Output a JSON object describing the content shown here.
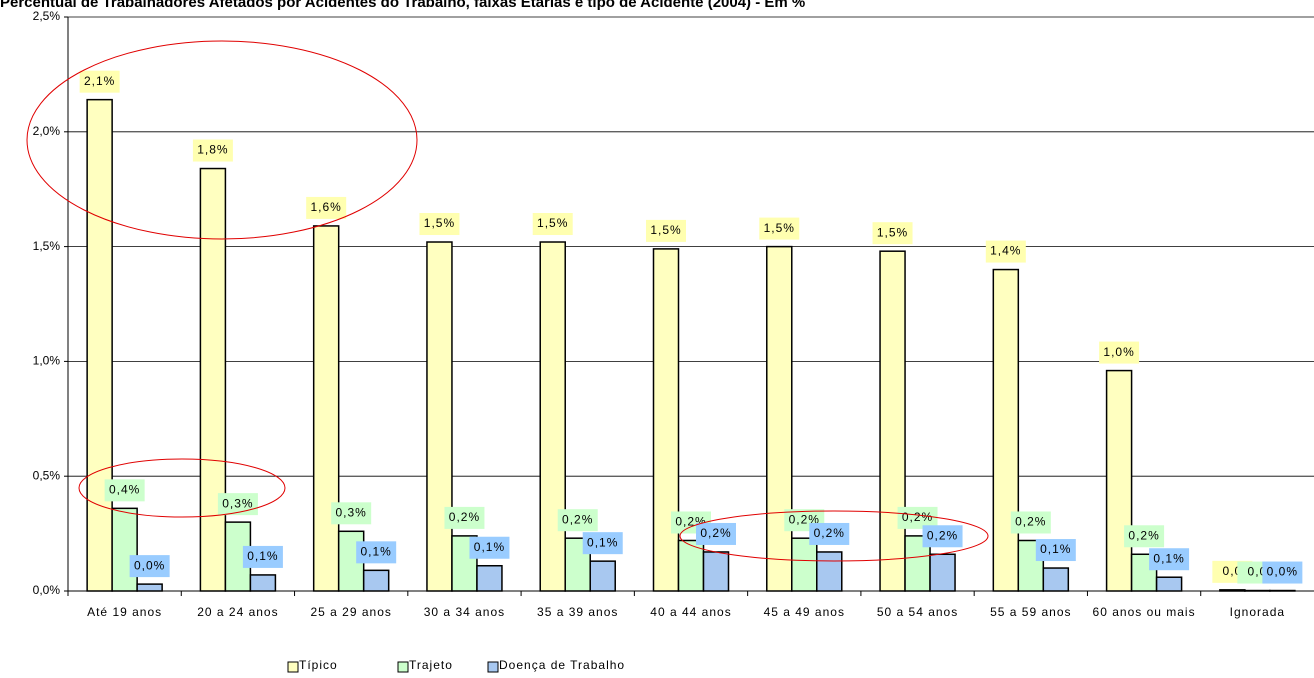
{
  "chart_data": {
    "type": "bar",
    "title": "Percentual de Trabalhadores Afetados por Acidentes do Trabalho, faixas Etárias e tipo de Acidente (2004) - Em %",
    "categories": [
      "Até 19 anos",
      "20 a 24 anos",
      "25 a 29 anos",
      "30 a 34 anos",
      "35 a 39 anos",
      "40 a 44 anos",
      "45 a 49 anos",
      "50 a 54 anos",
      "55 a 59 anos",
      "60 anos ou mais",
      "Ignorada"
    ],
    "series": [
      {
        "name": "Típico",
        "color": "#ffffc0",
        "label_color": "#ffffb0",
        "values": [
          2.14,
          1.84,
          1.59,
          1.52,
          1.52,
          1.49,
          1.5,
          1.48,
          1.4,
          0.96,
          0.005
        ],
        "value_labels": [
          "2,1%",
          "1,8%",
          "1,6%",
          "1,5%",
          "1,5%",
          "1,5%",
          "1,5%",
          "1,5%",
          "1,4%",
          "1,0%",
          "0,0"
        ]
      },
      {
        "name": "Trajeto",
        "color": "#ccffcc",
        "label_color": "#ccffcc",
        "values": [
          0.36,
          0.3,
          0.26,
          0.24,
          0.23,
          0.22,
          0.23,
          0.24,
          0.22,
          0.16,
          0.002
        ],
        "value_labels": [
          "0,4%",
          "0,3%",
          "0,3%",
          "0,2%",
          "0,2%",
          "0,2%",
          "0,2%",
          "0,2%",
          "0,2%",
          "0,2%",
          "0,0"
        ]
      },
      {
        "name": "Doença de Trabalho",
        "color": "#a8c8f0",
        "label_color": "#99ccff",
        "values": [
          0.03,
          0.07,
          0.09,
          0.11,
          0.13,
          0.17,
          0.17,
          0.16,
          0.1,
          0.06,
          0.002
        ],
        "value_labels": [
          "0,0%",
          "0,1%",
          "0,1%",
          "0,1%",
          "0,1%",
          "0,2%",
          "0,2%",
          "0,2%",
          "0,1%",
          "0,1%",
          "0,0%"
        ]
      }
    ],
    "ylim": [
      0,
      2.5
    ],
    "yticks": [
      {
        "value": 0,
        "label": "0,0%"
      },
      {
        "value": 0.5,
        "label": "0,5%"
      },
      {
        "value": 1,
        "label": "1,0%"
      },
      {
        "value": 1.5,
        "label": "1,5%"
      },
      {
        "value": 2,
        "label": "2,0%"
      },
      {
        "value": 2.5,
        "label": "2,5%"
      }
    ],
    "grid": true,
    "legend": "bottom"
  }
}
